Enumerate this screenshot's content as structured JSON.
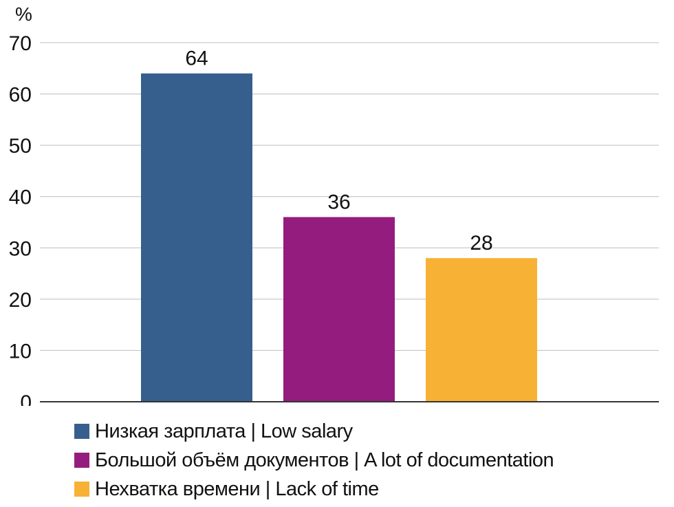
{
  "chart_data": {
    "type": "bar",
    "ylabel": "%",
    "ylim": [
      0,
      70
    ],
    "yticks": [
      0,
      10,
      20,
      30,
      40,
      50,
      60,
      70
    ],
    "grid": true,
    "legend_position": "bottom-left",
    "categories": [
      "Низкая зарплата | Low salary",
      "Большой объём документов | A lot of documentation",
      "Нехватка времени | Lack of time"
    ],
    "values": [
      64,
      36,
      28
    ],
    "data_labels": [
      "64",
      "36",
      "28"
    ],
    "colors": [
      "#365f8e",
      "#951c7f",
      "#f7b135"
    ]
  }
}
